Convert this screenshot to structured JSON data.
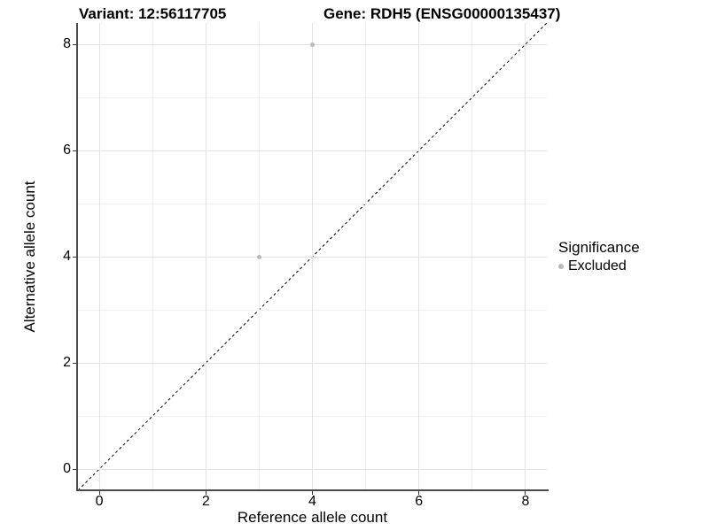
{
  "chart_data": {
    "type": "scatter",
    "titles": {
      "left": "Variant: 12:56117705",
      "right": "Gene: RDH5 (ENSG00000135437)"
    },
    "xlabel": "Reference allele count",
    "ylabel": "Alternative allele count",
    "xlim": [
      -0.4,
      8.4
    ],
    "ylim": [
      -0.4,
      8.4
    ],
    "x_major_ticks": [
      0,
      2,
      4,
      6,
      8
    ],
    "y_major_ticks": [
      0,
      2,
      4,
      6,
      8
    ],
    "x_minor_gridlines": [
      1,
      3,
      5,
      7
    ],
    "y_minor_gridlines": [
      1,
      3,
      5,
      7
    ],
    "grid": "major+minor",
    "identity_line": {
      "style": "dashed",
      "from": [
        -0.4,
        -0.4
      ],
      "to": [
        8.4,
        8.4
      ],
      "color": "#000000"
    },
    "series": [
      {
        "name": "Excluded",
        "color": "#b9b9b9",
        "points": [
          {
            "x": 4,
            "y": 8
          },
          {
            "x": 3,
            "y": 4
          }
        ]
      }
    ],
    "legend": {
      "title": "Significance",
      "position": "right",
      "items": [
        {
          "label": "Excluded",
          "color": "#b9b9b9"
        }
      ]
    },
    "colors": {
      "major_grid": "#e4e4e4",
      "minor_grid": "#f0f0f0",
      "axis_line": "#4a4a4a",
      "tick_mark": "#333333",
      "text": "#000000"
    }
  }
}
